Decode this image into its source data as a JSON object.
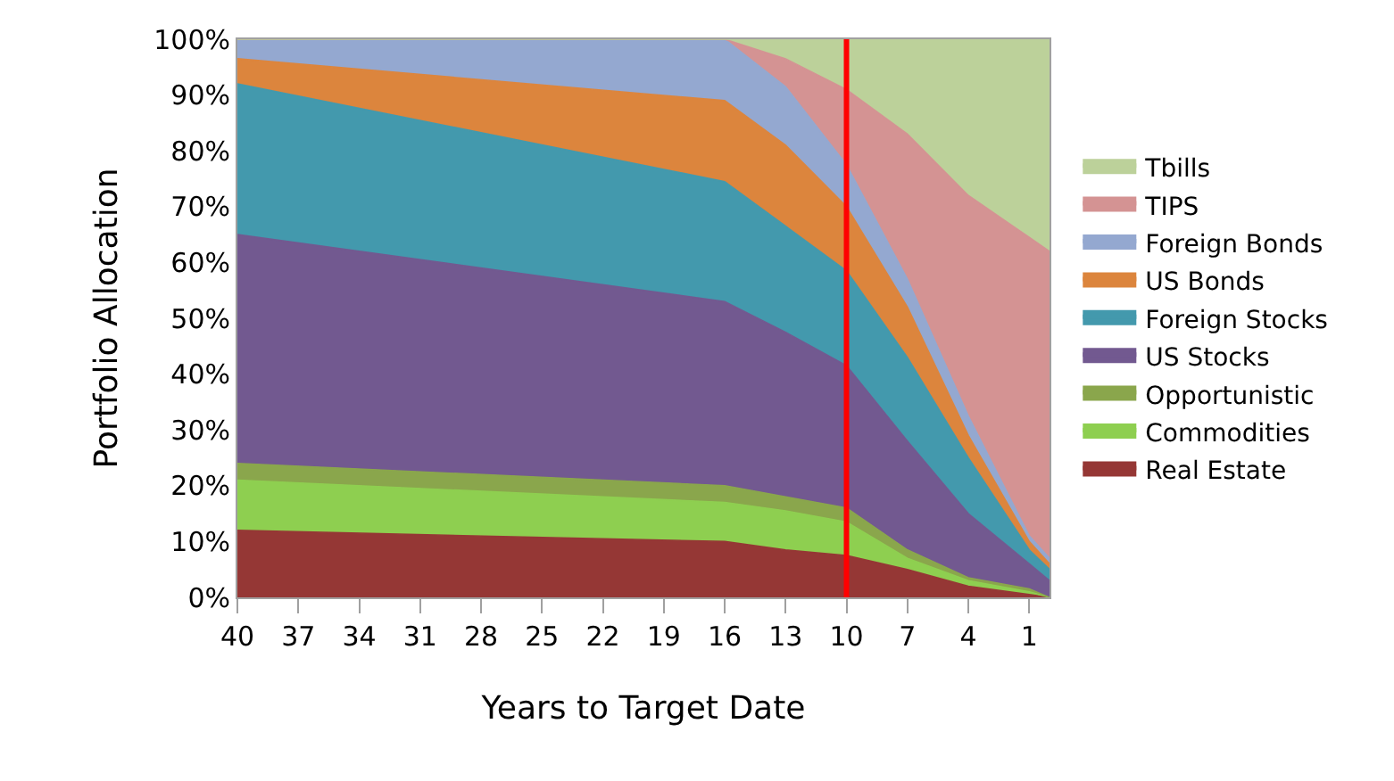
{
  "chart_data": {
    "type": "area",
    "stacked": true,
    "xlabel": "Years to Target Date",
    "ylabel": "Portfolio Allocation",
    "x": [
      40,
      16,
      13,
      10,
      7,
      4,
      1,
      0
    ],
    "series": [
      {
        "name": "Real Estate",
        "color": "#953735",
        "values": [
          12,
          10,
          8.5,
          7.5,
          5,
          2,
          0.5,
          0
        ]
      },
      {
        "name": "Commodities",
        "color": "#8ecf50",
        "values": [
          9,
          7,
          7,
          6,
          2,
          1,
          0.5,
          0
        ]
      },
      {
        "name": "Opportunistic",
        "color": "#8aa64c",
        "values": [
          3,
          3,
          2.5,
          2.5,
          1.5,
          0.5,
          0.5,
          0
        ]
      },
      {
        "name": "US Stocks",
        "color": "#725990",
        "values": [
          41,
          33,
          29.5,
          25.5,
          19.5,
          11.5,
          4.5,
          3
        ]
      },
      {
        "name": "Foreign Stocks",
        "color": "#4399ad",
        "values": [
          27,
          21.5,
          19,
          17,
          15,
          10,
          2.5,
          2
        ]
      },
      {
        "name": "US Bonds",
        "color": "#dc853d",
        "values": [
          4.5,
          14.5,
          14.5,
          11.5,
          9,
          4,
          1.5,
          1
        ]
      },
      {
        "name": "Foreign Bonds",
        "color": "#94a8d0",
        "values": [
          3.5,
          11,
          10.5,
          7.5,
          5,
          3.5,
          1,
          1
        ]
      },
      {
        "name": "TIPS",
        "color": "#d49393",
        "values": [
          0,
          0,
          5,
          13.5,
          26,
          39.5,
          53.5,
          55
        ]
      },
      {
        "name": "Tbills",
        "color": "#bcd19a",
        "values": [
          0,
          0,
          3.5,
          9,
          17,
          28,
          35.5,
          38
        ]
      }
    ],
    "xlim": [
      40,
      0
    ],
    "xticks": [
      40,
      37,
      34,
      31,
      28,
      25,
      22,
      19,
      16,
      13,
      10,
      7,
      4,
      1
    ],
    "ylim": [
      0,
      100
    ],
    "yticks": [
      {
        "value": 0,
        "label": "0%"
      },
      {
        "value": 10,
        "label": "10%"
      },
      {
        "value": 20,
        "label": "20%"
      },
      {
        "value": 30,
        "label": "30%"
      },
      {
        "value": 40,
        "label": "40%"
      },
      {
        "value": 50,
        "label": "50%"
      },
      {
        "value": 60,
        "label": "60%"
      },
      {
        "value": 70,
        "label": "70%"
      },
      {
        "value": 80,
        "label": "80%"
      },
      {
        "value": 90,
        "label": "90%"
      },
      {
        "value": 100,
        "label": "100%"
      }
    ],
    "ref_lines": [
      {
        "axis": "x",
        "value": 10,
        "color": "#ff0000"
      }
    ],
    "legend": "right"
  }
}
